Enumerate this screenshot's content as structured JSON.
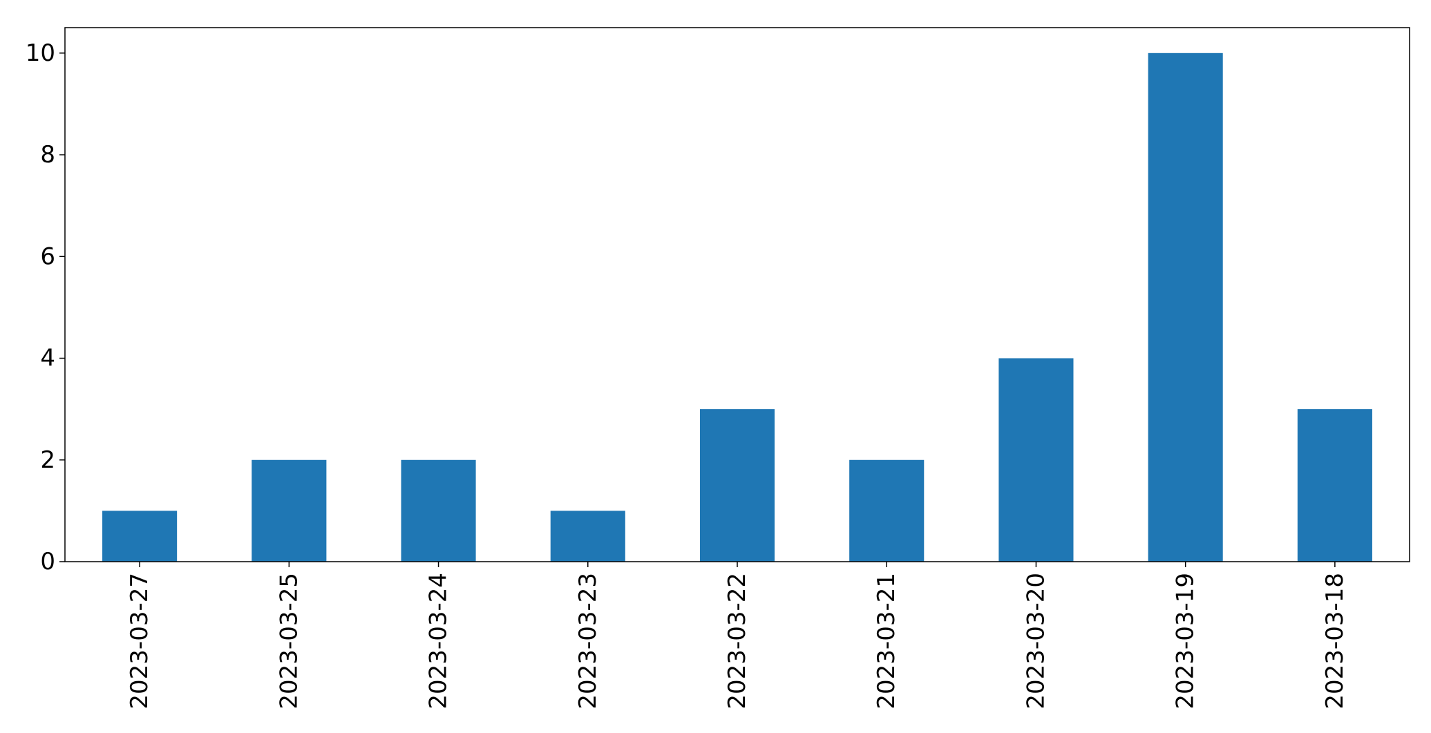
{
  "chart_data": {
    "type": "bar",
    "title": "",
    "xlabel": "",
    "ylabel": "",
    "categories": [
      "2023-03-27",
      "2023-03-25",
      "2023-03-24",
      "2023-03-23",
      "2023-03-22",
      "2023-03-21",
      "2023-03-20",
      "2023-03-19",
      "2023-03-18"
    ],
    "values": [
      1,
      2,
      2,
      1,
      3,
      2,
      4,
      10,
      3
    ],
    "ylim": [
      0,
      10.5
    ],
    "yticks": [
      0,
      2,
      4,
      6,
      8,
      10
    ],
    "grid": false,
    "legend": "none",
    "bar_color": "#1f77b4"
  }
}
